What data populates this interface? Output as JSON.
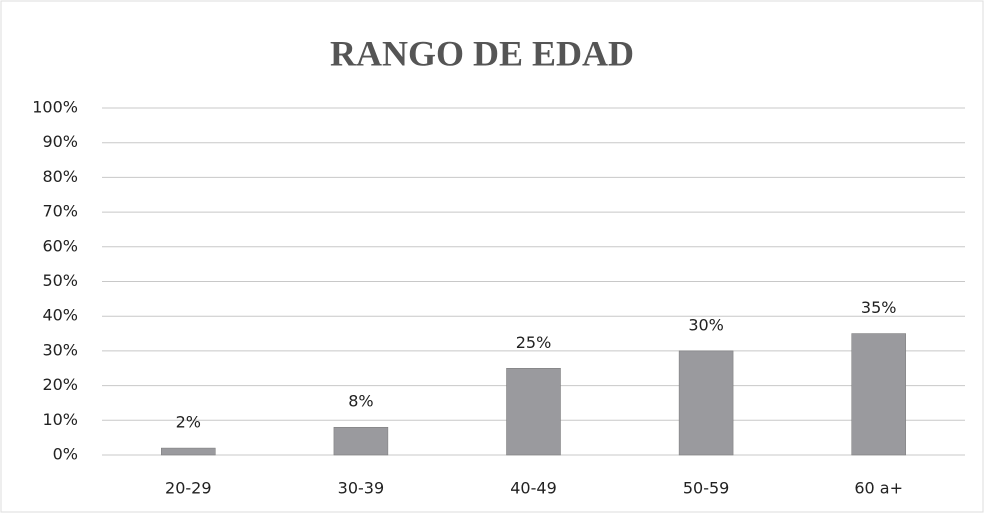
{
  "chart_data": {
    "type": "bar",
    "title": "RANGO DE EDAD",
    "categories": [
      "20-29",
      "30-39",
      "40-49",
      "50-59",
      "60 a+"
    ],
    "values": [
      2,
      8,
      25,
      30,
      35
    ],
    "value_labels": [
      "2%",
      "8%",
      "25%",
      "30%",
      "35%"
    ],
    "color": "#9a9a9e",
    "ylim": [
      0,
      100
    ],
    "yticks": [
      {
        "value": 0,
        "label": "0%"
      },
      {
        "value": 10,
        "label": "10%"
      },
      {
        "value": 20,
        "label": "20%"
      },
      {
        "value": 30,
        "label": "30%"
      },
      {
        "value": 40,
        "label": "40%"
      },
      {
        "value": 50,
        "label": "50%"
      },
      {
        "value": 60,
        "label": "60%"
      },
      {
        "value": 70,
        "label": "70%"
      },
      {
        "value": 80,
        "label": "80%"
      },
      {
        "value": 90,
        "label": "90%"
      },
      {
        "value": 100,
        "label": "100%"
      }
    ],
    "grid": true
  }
}
